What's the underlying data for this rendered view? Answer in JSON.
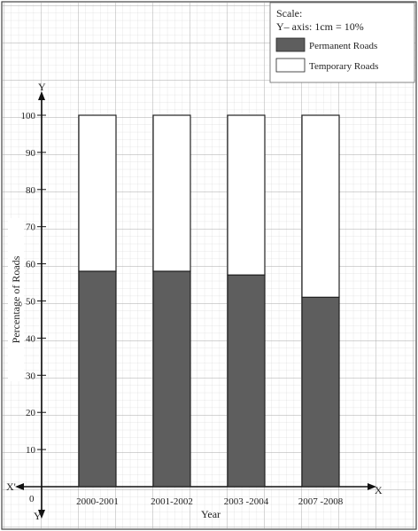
{
  "chart_data": {
    "type": "bar",
    "stacked": true,
    "categories": [
      "2000-2001",
      "2001-2002",
      "2003 -2004",
      "2007 -2008"
    ],
    "series": [
      {
        "name": "Permanent Roads",
        "values": [
          58,
          58,
          57,
          51
        ],
        "color": "#5e5e5e"
      },
      {
        "name": "Temporary Roads",
        "values": [
          42,
          42,
          43,
          49
        ],
        "color": "#ffffff"
      }
    ],
    "xlabel": "Year",
    "ylabel": "Percentage of Roads",
    "ylim": [
      0,
      100
    ],
    "yticks": [
      10,
      20,
      30,
      40,
      50,
      60,
      70,
      80,
      90,
      100
    ],
    "origin_label": "0",
    "axis_labels": {
      "x": "X",
      "x_neg": "X'",
      "y": "Y",
      "y_neg": "Y'"
    },
    "grid": true,
    "legend_placement": "top-right"
  },
  "scale": {
    "title": "Scale:",
    "text": "Y– axis: 1cm = 10%"
  }
}
